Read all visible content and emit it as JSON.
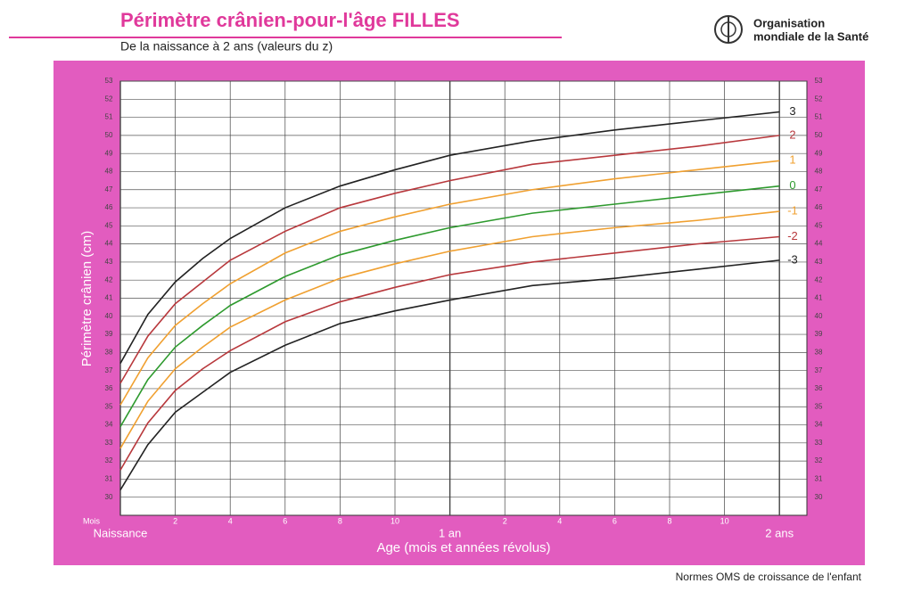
{
  "chart_data": {
    "type": "line",
    "title": "Périmètre crânien-pour-l'âge  FILLES",
    "subtitle": "De la naissance à 2 ans (valeurs du z)",
    "organization": [
      "Organisation",
      "mondiale de la Santé"
    ],
    "y_label": "Périmètre crânien (cm)",
    "x_label": "Age (mois et années révolus)",
    "x_unit": "Mois",
    "footer": "Normes OMS de croissance de l'enfant",
    "x": [
      0,
      1,
      2,
      3,
      4,
      6,
      8,
      10,
      12,
      15,
      18,
      21,
      24
    ],
    "xlim": [
      0,
      25
    ],
    "xticks": [
      {
        "value": 0,
        "label": "Naissance"
      },
      2,
      4,
      6,
      8,
      10,
      {
        "value": 12,
        "label": "1 an"
      },
      {
        "value": 14,
        "label": "2"
      },
      {
        "value": 16,
        "label": "4"
      },
      {
        "value": 18,
        "label": "6"
      },
      {
        "value": 20,
        "label": "8"
      },
      {
        "value": 22,
        "label": "10"
      },
      {
        "value": 24,
        "label": "2 ans"
      }
    ],
    "ylim": [
      29,
      53
    ],
    "yticks": [
      30,
      31,
      32,
      33,
      34,
      35,
      36,
      37,
      38,
      39,
      40,
      41,
      42,
      43,
      44,
      45,
      46,
      47,
      48,
      49,
      50,
      51,
      52,
      53
    ],
    "grid": true,
    "series": [
      {
        "name": "3",
        "color": "#222222",
        "values": [
          37.4,
          40.1,
          41.9,
          43.2,
          44.3,
          46.0,
          47.2,
          48.1,
          48.9,
          49.7,
          50.3,
          50.8,
          51.3
        ]
      },
      {
        "name": "2",
        "color": "#b8383c",
        "values": [
          36.3,
          38.9,
          40.7,
          41.9,
          43.1,
          44.7,
          46.0,
          46.8,
          47.5,
          48.4,
          48.9,
          49.4,
          50.0
        ]
      },
      {
        "name": "1",
        "color": "#f0a030",
        "values": [
          35.1,
          37.7,
          39.5,
          40.7,
          41.8,
          43.5,
          44.7,
          45.5,
          46.2,
          47.0,
          47.6,
          48.1,
          48.6
        ]
      },
      {
        "name": "0",
        "color": "#2e9a2e",
        "values": [
          33.9,
          36.5,
          38.3,
          39.5,
          40.6,
          42.2,
          43.4,
          44.2,
          44.9,
          45.7,
          46.2,
          46.7,
          47.2
        ]
      },
      {
        "name": "-1",
        "color": "#f0a030",
        "values": [
          32.7,
          35.3,
          37.1,
          38.3,
          39.4,
          40.9,
          42.1,
          42.9,
          43.6,
          44.4,
          44.9,
          45.3,
          45.8
        ]
      },
      {
        "name": "-2",
        "color": "#b8383c",
        "values": [
          31.5,
          34.1,
          35.9,
          37.1,
          38.1,
          39.7,
          40.8,
          41.6,
          42.3,
          43.0,
          43.5,
          44.0,
          44.4
        ]
      },
      {
        "name": "-3",
        "color": "#222222",
        "values": [
          30.4,
          32.9,
          34.7,
          35.8,
          36.9,
          38.4,
          39.6,
          40.3,
          40.9,
          41.7,
          42.1,
          42.6,
          43.1
        ]
      }
    ]
  }
}
